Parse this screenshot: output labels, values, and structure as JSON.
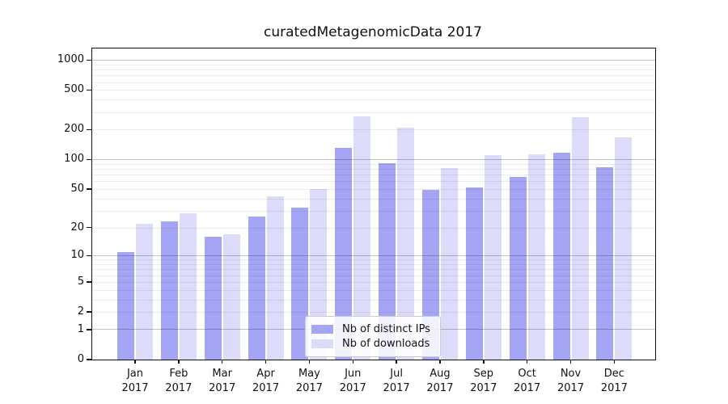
{
  "title": "curatedMetagenomicData 2017",
  "axes": {
    "y_tick_labels": [
      "0",
      "1",
      "2",
      "5",
      "10",
      "20",
      "50",
      "100",
      "200",
      "500",
      "1000"
    ],
    "x_months": [
      "Jan",
      "Feb",
      "Mar",
      "Apr",
      "May",
      "Jun",
      "Jul",
      "Aug",
      "Sep",
      "Oct",
      "Nov",
      "Dec"
    ],
    "x_year": "2017"
  },
  "legend": {
    "items": [
      {
        "label": "Nb of distinct IPs",
        "color": "#a5a5f5"
      },
      {
        "label": "Nb of downloads",
        "color": "#dcdcfa"
      }
    ]
  },
  "chart_data": {
    "type": "bar",
    "title": "curatedMetagenomicData 2017",
    "categories": [
      "Jan 2017",
      "Feb 2017",
      "Mar 2017",
      "Apr 2017",
      "May 2017",
      "Jun 2017",
      "Jul 2017",
      "Aug 2017",
      "Sep 2017",
      "Oct 2017",
      "Nov 2017",
      "Dec 2017"
    ],
    "series": [
      {
        "name": "Nb of distinct IPs",
        "color": "#a5a5f5",
        "values": [
          11,
          23,
          16,
          26,
          32,
          130,
          91,
          49,
          52,
          67,
          117,
          83
        ]
      },
      {
        "name": "Nb of downloads",
        "color": "#dcdcfa",
        "values": [
          22,
          28,
          17,
          42,
          50,
          272,
          208,
          82,
          111,
          112,
          267,
          167
        ]
      }
    ],
    "xlabel": "",
    "ylabel": "",
    "yscale": "log1p (log10 of value+1, zero included at baseline)",
    "y_ticks": [
      0,
      1,
      2,
      5,
      10,
      20,
      50,
      100,
      200,
      500,
      1000
    ],
    "y_major_gridlines": [
      1,
      10,
      100,
      1000
    ],
    "ylim": [
      0,
      1330
    ],
    "grid": "horizontal only, light minors at 2-9 per decade, darker majors at powers of 10, drawn over bars",
    "legend_position": "lower center"
  }
}
